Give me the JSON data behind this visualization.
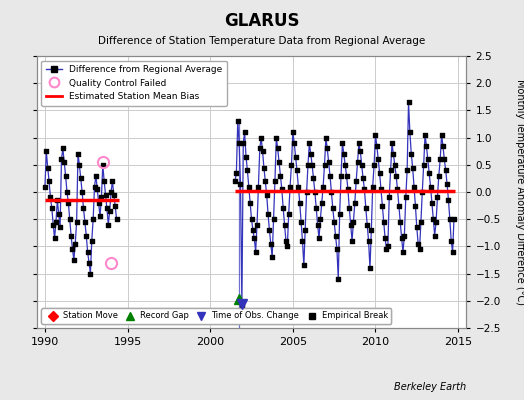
{
  "title": "GLARUS",
  "subtitle": "Difference of Station Temperature Data from Regional Average",
  "ylabel": "Monthly Temperature Anomaly Difference (°C)",
  "xlabel_watermark": "Berkeley Earth",
  "xlim": [
    1989.5,
    2015.5
  ],
  "ylim": [
    -2.5,
    2.5
  ],
  "xticks": [
    1990,
    1995,
    2000,
    2005,
    2010,
    2015
  ],
  "yticks": [
    -2.5,
    -2,
    -1.5,
    -1,
    -0.5,
    0,
    0.5,
    1,
    1.5,
    2,
    2.5
  ],
  "bg_color": "#e8e8e8",
  "plot_bg_color": "#ffffff",
  "grid_color": "#cccccc",
  "segment1_x_start": 1990.0,
  "segment1_x_end": 1994.5,
  "segment2_x_start": 2001.5,
  "segment2_x_end": 2014.8,
  "bias1_y": -0.15,
  "bias2_y": 0.02,
  "gap_x": 2001.75,
  "gap_triangle_y": -1.97,
  "qc_failed_points": [
    [
      1993.5,
      0.55
    ],
    [
      1994.0,
      -1.3
    ]
  ],
  "obs_change_x": 2001.92,
  "obs_change_y": -2.05,
  "vertical_line_x": 2001.75,
  "vertical_line_top": 1.35,
  "blue_line_color": "#3333bb",
  "seg1_data_x": [
    1990.0,
    1990.083,
    1990.167,
    1990.25,
    1990.333,
    1990.417,
    1990.5,
    1990.583,
    1990.667,
    1990.75,
    1990.833,
    1990.917,
    1991.0,
    1991.083,
    1991.167,
    1991.25,
    1991.333,
    1991.417,
    1991.5,
    1991.583,
    1991.667,
    1991.75,
    1991.833,
    1991.917,
    1992.0,
    1992.083,
    1992.167,
    1992.25,
    1992.333,
    1992.417,
    1992.5,
    1992.583,
    1992.667,
    1992.75,
    1992.833,
    1992.917,
    1993.0,
    1993.083,
    1993.167,
    1993.25,
    1993.333,
    1993.417,
    1993.5,
    1993.583,
    1993.667,
    1993.75,
    1993.833,
    1993.917,
    1994.0,
    1994.083,
    1994.167,
    1994.25,
    1994.333
  ],
  "seg1_data_y": [
    0.1,
    0.75,
    0.45,
    0.2,
    -0.1,
    -0.3,
    -0.6,
    -0.85,
    -0.55,
    -0.15,
    -0.4,
    -0.65,
    0.6,
    0.8,
    0.55,
    0.3,
    0.0,
    -0.2,
    -0.5,
    -0.8,
    -1.05,
    -1.25,
    -0.95,
    -0.55,
    0.7,
    0.5,
    0.25,
    0.0,
    -0.3,
    -0.55,
    -0.8,
    -1.1,
    -1.3,
    -1.5,
    -0.9,
    -0.5,
    0.1,
    0.3,
    0.05,
    -0.2,
    -0.45,
    -0.1,
    0.5,
    0.2,
    -0.05,
    -0.3,
    -0.6,
    -0.35,
    0.0,
    0.2,
    -0.05,
    -0.25,
    -0.5
  ],
  "seg2_data_x": [
    2001.5,
    2001.583,
    2001.667,
    2001.75,
    2001.833,
    2001.917,
    2002.0,
    2002.083,
    2002.167,
    2002.25,
    2002.333,
    2002.417,
    2002.5,
    2002.583,
    2002.667,
    2002.75,
    2002.833,
    2002.917,
    2003.0,
    2003.083,
    2003.167,
    2003.25,
    2003.333,
    2003.417,
    2003.5,
    2003.583,
    2003.667,
    2003.75,
    2003.833,
    2003.917,
    2004.0,
    2004.083,
    2004.167,
    2004.25,
    2004.333,
    2004.417,
    2004.5,
    2004.583,
    2004.667,
    2004.75,
    2004.833,
    2004.917,
    2005.0,
    2005.083,
    2005.167,
    2005.25,
    2005.333,
    2005.417,
    2005.5,
    2005.583,
    2005.667,
    2005.75,
    2005.833,
    2005.917,
    2006.0,
    2006.083,
    2006.167,
    2006.25,
    2006.333,
    2006.417,
    2006.5,
    2006.583,
    2006.667,
    2006.75,
    2006.833,
    2006.917,
    2007.0,
    2007.083,
    2007.167,
    2007.25,
    2007.333,
    2007.417,
    2007.5,
    2007.583,
    2007.667,
    2007.75,
    2007.833,
    2007.917,
    2008.0,
    2008.083,
    2008.167,
    2008.25,
    2008.333,
    2008.417,
    2008.5,
    2008.583,
    2008.667,
    2008.75,
    2008.833,
    2008.917,
    2009.0,
    2009.083,
    2009.167,
    2009.25,
    2009.333,
    2009.417,
    2009.5,
    2009.583,
    2009.667,
    2009.75,
    2009.833,
    2009.917,
    2010.0,
    2010.083,
    2010.167,
    2010.25,
    2010.333,
    2010.417,
    2010.5,
    2010.583,
    2010.667,
    2010.75,
    2010.833,
    2010.917,
    2011.0,
    2011.083,
    2011.167,
    2011.25,
    2011.333,
    2011.417,
    2011.5,
    2011.583,
    2011.667,
    2011.75,
    2011.833,
    2011.917,
    2012.0,
    2012.083,
    2012.167,
    2012.25,
    2012.333,
    2012.417,
    2012.5,
    2012.583,
    2012.667,
    2012.75,
    2012.833,
    2012.917,
    2013.0,
    2013.083,
    2013.167,
    2013.25,
    2013.333,
    2013.417,
    2013.5,
    2013.583,
    2013.667,
    2013.75,
    2013.833,
    2013.917,
    2014.0,
    2014.083,
    2014.167,
    2014.25,
    2014.333,
    2014.417,
    2014.5,
    2014.583,
    2014.667,
    2014.75
  ],
  "seg2_data_y": [
    0.2,
    0.35,
    1.3,
    0.9,
    0.15,
    -2.1,
    0.9,
    1.1,
    0.65,
    0.4,
    0.1,
    -0.2,
    -0.5,
    -0.7,
    -0.85,
    -1.1,
    -0.6,
    0.1,
    0.8,
    1.0,
    0.75,
    0.45,
    0.2,
    -0.05,
    -0.4,
    -0.7,
    -0.95,
    -1.2,
    -0.5,
    0.2,
    1.0,
    0.8,
    0.55,
    0.3,
    0.05,
    -0.3,
    -0.6,
    -0.9,
    -1.0,
    -0.4,
    0.1,
    0.5,
    1.1,
    0.9,
    0.65,
    0.4,
    0.1,
    -0.2,
    -0.55,
    -0.9,
    -1.35,
    -0.7,
    0.0,
    0.5,
    0.9,
    0.7,
    0.5,
    0.25,
    0.0,
    -0.3,
    -0.6,
    -0.85,
    -0.5,
    -0.2,
    0.1,
    0.5,
    1.0,
    0.8,
    0.55,
    0.3,
    0.0,
    -0.3,
    -0.55,
    -0.8,
    -1.05,
    -1.6,
    -0.4,
    0.3,
    0.9,
    0.7,
    0.5,
    0.3,
    0.05,
    -0.3,
    -0.6,
    -0.9,
    -0.55,
    -0.2,
    0.2,
    0.55,
    0.9,
    0.75,
    0.5,
    0.25,
    0.05,
    -0.3,
    -0.6,
    -0.9,
    -1.4,
    -0.7,
    0.1,
    0.5,
    1.05,
    0.85,
    0.6,
    0.35,
    0.05,
    -0.25,
    -0.55,
    -0.85,
    -1.05,
    -1.0,
    -0.1,
    0.4,
    0.9,
    0.7,
    0.5,
    0.3,
    0.05,
    -0.25,
    -0.55,
    -0.85,
    -1.1,
    -0.8,
    -0.1,
    0.4,
    1.65,
    1.1,
    0.7,
    0.45,
    0.1,
    -0.25,
    -0.65,
    -0.95,
    -1.05,
    -0.55,
    0.0,
    0.5,
    1.05,
    0.85,
    0.6,
    0.35,
    0.1,
    -0.2,
    -0.5,
    -0.8,
    -0.55,
    -0.1,
    0.3,
    0.6,
    1.05,
    0.85,
    0.6,
    0.4,
    0.15,
    -0.15,
    -0.5,
    -0.9,
    -1.1,
    -0.5
  ]
}
